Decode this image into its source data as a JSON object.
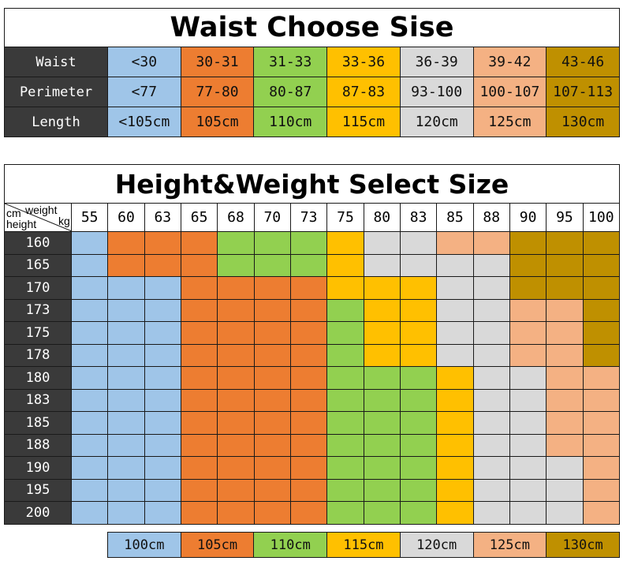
{
  "colors": {
    "blue": "#9fc5e8",
    "orange": "#ed7d31",
    "green": "#92d050",
    "yellow": "#ffc000",
    "gray": "#d9d9d9",
    "peach": "#f4b183",
    "olive": "#bf9000",
    "dark": "#3a3a3a"
  },
  "waist_chart": {
    "title": "Waist Choose Sise",
    "row_labels": [
      "Waist",
      "Perimeter",
      "Length"
    ],
    "size_colors": [
      "blue",
      "orange",
      "green",
      "yellow",
      "gray",
      "peach",
      "olive"
    ],
    "waist": [
      "<30",
      "30-31",
      "31-33",
      "33-36",
      "36-39",
      "39-42",
      "43-46"
    ],
    "perimeter": [
      "<77",
      "77-80",
      "80-87",
      "87-83",
      "93-100",
      "100-107",
      "107-113"
    ],
    "length": [
      "<105cm",
      "105cm",
      "110cm",
      "115cm",
      "120cm",
      "125cm",
      "130cm"
    ]
  },
  "size_chart": {
    "title": "Height&Weight Select Size",
    "corner": {
      "weight": "weight",
      "kg": "kg",
      "cm": "cm",
      "height": "height"
    },
    "weights": [
      "55",
      "60",
      "63",
      "65",
      "68",
      "70",
      "73",
      "75",
      "80",
      "83",
      "85",
      "88",
      "90",
      "95",
      "100"
    ],
    "rows": [
      {
        "height": "160",
        "cells": [
          "blue",
          "orange",
          "orange",
          "orange",
          "green",
          "green",
          "green",
          "yellow",
          "gray",
          "gray",
          "peach",
          "peach",
          "olive",
          "olive",
          "olive"
        ]
      },
      {
        "height": "165",
        "cells": [
          "blue",
          "orange",
          "orange",
          "orange",
          "green",
          "green",
          "green",
          "yellow",
          "gray",
          "gray",
          "gray",
          "gray",
          "olive",
          "olive",
          "olive"
        ]
      },
      {
        "height": "170",
        "cells": [
          "blue",
          "blue",
          "blue",
          "orange",
          "orange",
          "orange",
          "orange",
          "yellow",
          "yellow",
          "yellow",
          "gray",
          "gray",
          "olive",
          "olive",
          "olive"
        ]
      },
      {
        "height": "173",
        "cells": [
          "blue",
          "blue",
          "blue",
          "orange",
          "orange",
          "orange",
          "orange",
          "green",
          "yellow",
          "yellow",
          "gray",
          "gray",
          "peach",
          "peach",
          "olive"
        ]
      },
      {
        "height": "175",
        "cells": [
          "blue",
          "blue",
          "blue",
          "orange",
          "orange",
          "orange",
          "orange",
          "green",
          "yellow",
          "yellow",
          "gray",
          "gray",
          "peach",
          "peach",
          "olive"
        ]
      },
      {
        "height": "178",
        "cells": [
          "blue",
          "blue",
          "blue",
          "orange",
          "orange",
          "orange",
          "orange",
          "green",
          "yellow",
          "yellow",
          "gray",
          "gray",
          "peach",
          "peach",
          "olive"
        ]
      },
      {
        "height": "180",
        "cells": [
          "blue",
          "blue",
          "blue",
          "orange",
          "orange",
          "orange",
          "orange",
          "green",
          "green",
          "green",
          "yellow",
          "gray",
          "gray",
          "peach",
          "peach"
        ]
      },
      {
        "height": "183",
        "cells": [
          "blue",
          "blue",
          "blue",
          "orange",
          "orange",
          "orange",
          "orange",
          "green",
          "green",
          "green",
          "yellow",
          "gray",
          "gray",
          "peach",
          "peach"
        ]
      },
      {
        "height": "185",
        "cells": [
          "blue",
          "blue",
          "blue",
          "orange",
          "orange",
          "orange",
          "orange",
          "green",
          "green",
          "green",
          "yellow",
          "gray",
          "gray",
          "peach",
          "peach"
        ]
      },
      {
        "height": "188",
        "cells": [
          "blue",
          "blue",
          "blue",
          "orange",
          "orange",
          "orange",
          "orange",
          "green",
          "green",
          "green",
          "yellow",
          "gray",
          "gray",
          "peach",
          "peach"
        ]
      },
      {
        "height": "190",
        "cells": [
          "blue",
          "blue",
          "blue",
          "orange",
          "orange",
          "orange",
          "orange",
          "green",
          "green",
          "green",
          "yellow",
          "gray",
          "gray",
          "gray",
          "peach"
        ]
      },
      {
        "height": "195",
        "cells": [
          "blue",
          "blue",
          "blue",
          "orange",
          "orange",
          "orange",
          "orange",
          "green",
          "green",
          "green",
          "yellow",
          "gray",
          "gray",
          "gray",
          "peach"
        ]
      },
      {
        "height": "200",
        "cells": [
          "blue",
          "blue",
          "blue",
          "orange",
          "orange",
          "orange",
          "orange",
          "green",
          "green",
          "green",
          "yellow",
          "gray",
          "gray",
          "gray",
          "peach"
        ]
      }
    ]
  },
  "legend": {
    "labels": [
      "100cm",
      "105cm",
      "110cm",
      "115cm",
      "120cm",
      "125cm",
      "130cm"
    ],
    "colors": [
      "blue",
      "orange",
      "green",
      "yellow",
      "gray",
      "peach",
      "olive"
    ]
  }
}
